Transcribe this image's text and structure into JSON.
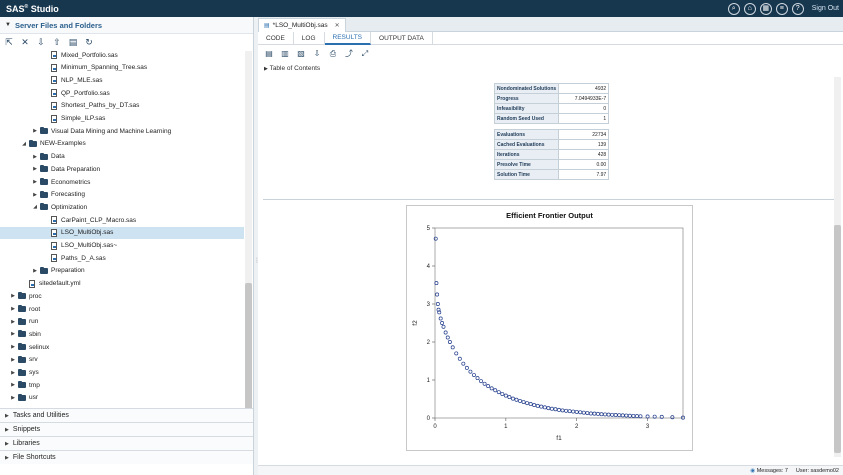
{
  "app": {
    "brand": "SAS",
    "brand_sup": "®",
    "brand_suffix": "Studio",
    "sign_out": "Sign Out",
    "top_icons": [
      "search-icon",
      "home-icon",
      "layout-icon",
      "menu-icon",
      "help-icon"
    ]
  },
  "left": {
    "header": "Server Files and Folders",
    "tree": [
      {
        "label": "Mixed_Portfolio.sas",
        "type": "file",
        "indent": 3
      },
      {
        "label": "Minimum_Spanning_Tree.sas",
        "type": "file",
        "indent": 3
      },
      {
        "label": "NLP_MLE.sas",
        "type": "file",
        "indent": 3
      },
      {
        "label": "QP_Portfolio.sas",
        "type": "file",
        "indent": 3
      },
      {
        "label": "Shortest_Paths_by_DT.sas",
        "type": "file",
        "indent": 3
      },
      {
        "label": "Simple_ILP.sas",
        "type": "file",
        "indent": 3
      },
      {
        "label": "Visual Data Mining and Machine Learning",
        "type": "folder",
        "indent": 2,
        "state": "collapsed"
      },
      {
        "label": "NEW-Examples",
        "type": "folder",
        "indent": 1,
        "state": "expanded"
      },
      {
        "label": "Data",
        "type": "folder",
        "indent": 2,
        "state": "collapsed"
      },
      {
        "label": "Data Preparation",
        "type": "folder",
        "indent": 2,
        "state": "collapsed"
      },
      {
        "label": "Econometrics",
        "type": "folder",
        "indent": 2,
        "state": "collapsed"
      },
      {
        "label": "Forecasting",
        "type": "folder",
        "indent": 2,
        "state": "collapsed"
      },
      {
        "label": "Optimization",
        "type": "folder",
        "indent": 2,
        "state": "expanded"
      },
      {
        "label": "CarPaint_CLP_Macro.sas",
        "type": "file",
        "indent": 3
      },
      {
        "label": "LSO_MultiObj.sas",
        "type": "file",
        "indent": 3,
        "selected": true
      },
      {
        "label": "LSO_MultiObj.sas~",
        "type": "file",
        "indent": 3
      },
      {
        "label": "Paths_D_A.sas",
        "type": "file",
        "indent": 3
      },
      {
        "label": "Preparation",
        "type": "folder",
        "indent": 2,
        "state": "collapsed"
      },
      {
        "label": "sitedefault.yml",
        "type": "file",
        "indent": 1
      },
      {
        "label": "proc",
        "type": "folder",
        "indent": 0,
        "state": "collapsed"
      },
      {
        "label": "root",
        "type": "folder",
        "indent": 0,
        "state": "collapsed"
      },
      {
        "label": "run",
        "type": "folder",
        "indent": 0,
        "state": "collapsed"
      },
      {
        "label": "sbin",
        "type": "folder",
        "indent": 0,
        "state": "collapsed"
      },
      {
        "label": "selinux",
        "type": "folder",
        "indent": 0,
        "state": "collapsed"
      },
      {
        "label": "srv",
        "type": "folder",
        "indent": 0,
        "state": "collapsed"
      },
      {
        "label": "sys",
        "type": "folder",
        "indent": 0,
        "state": "collapsed"
      },
      {
        "label": "tmp",
        "type": "folder",
        "indent": 0,
        "state": "collapsed"
      },
      {
        "label": "usr",
        "type": "folder",
        "indent": 0,
        "state": "collapsed"
      }
    ],
    "sections": [
      "Tasks and Utilities",
      "Snippets",
      "Libraries",
      "File Shortcuts"
    ]
  },
  "right": {
    "file_tab": "*LSO_MultiObj.sas",
    "subtabs": [
      "CODE",
      "LOG",
      "RESULTS",
      "OUTPUT DATA"
    ],
    "active_subtab": "RESULTS",
    "toc": "Table of Contents",
    "stats": [
      {
        "label": "Nondominated Solutions",
        "value": "4932"
      },
      {
        "label": "Progress",
        "value": "7.0494933E-7"
      },
      {
        "label": "Infeasibility",
        "value": "0"
      },
      {
        "label": "Random Seed Used",
        "value": "1"
      },
      {
        "label": "",
        "value": ""
      },
      {
        "label": "Evaluations",
        "value": "22734"
      },
      {
        "label": "Cached Evaluations",
        "value": "139"
      },
      {
        "label": "Iterations",
        "value": "428"
      },
      {
        "label": "Presolve Time",
        "value": "0.00"
      },
      {
        "label": "Solution Time",
        "value": "7.97"
      }
    ]
  },
  "status": {
    "messages": "Messages: 7",
    "user": "User: sasdemo02"
  },
  "chart_data": {
    "type": "scatter",
    "title": "Efficient Frontier Output",
    "xlabel": "f1",
    "ylabel": "f2",
    "xlim": [
      0,
      3.5
    ],
    "ylim": [
      0,
      5
    ],
    "xticks": [
      0,
      1,
      2,
      3
    ],
    "yticks": [
      0,
      1,
      2,
      3,
      4,
      5
    ],
    "marker": "circle-open",
    "color": "#1f3a8a",
    "series": [
      {
        "x": [
          0.01,
          0.02,
          0.03,
          0.04,
          0.05,
          0.06,
          0.08,
          0.1,
          0.12,
          0.15,
          0.18,
          0.21,
          0.25,
          0.3,
          0.35,
          0.4,
          0.45,
          0.5,
          0.55,
          0.6,
          0.65,
          0.7,
          0.75,
          0.8,
          0.85,
          0.9,
          0.95,
          1.0,
          1.05,
          1.1,
          1.15,
          1.2,
          1.25,
          1.3,
          1.35,
          1.4,
          1.45,
          1.5,
          1.55,
          1.6,
          1.65,
          1.7,
          1.75,
          1.8,
          1.85,
          1.9,
          1.95,
          2.0,
          2.05,
          2.1,
          2.15,
          2.2,
          2.25,
          2.3,
          2.35,
          2.4,
          2.45,
          2.5,
          2.55,
          2.6,
          2.65,
          2.7,
          2.75,
          2.8,
          2.85,
          2.9,
          3.0,
          3.1,
          3.2,
          3.35,
          3.5
        ],
        "y": [
          4.72,
          3.55,
          3.25,
          3.0,
          2.85,
          2.78,
          2.62,
          2.5,
          2.4,
          2.25,
          2.12,
          2.0,
          1.86,
          1.7,
          1.56,
          1.43,
          1.32,
          1.22,
          1.13,
          1.05,
          0.97,
          0.9,
          0.84,
          0.78,
          0.73,
          0.68,
          0.63,
          0.59,
          0.55,
          0.51,
          0.48,
          0.45,
          0.42,
          0.39,
          0.37,
          0.34,
          0.32,
          0.3,
          0.28,
          0.26,
          0.245,
          0.23,
          0.215,
          0.2,
          0.19,
          0.18,
          0.17,
          0.16,
          0.15,
          0.14,
          0.13,
          0.12,
          0.115,
          0.11,
          0.1,
          0.095,
          0.09,
          0.085,
          0.08,
          0.075,
          0.07,
          0.065,
          0.06,
          0.055,
          0.05,
          0.045,
          0.04,
          0.035,
          0.03,
          0.02,
          0.01
        ]
      }
    ]
  }
}
